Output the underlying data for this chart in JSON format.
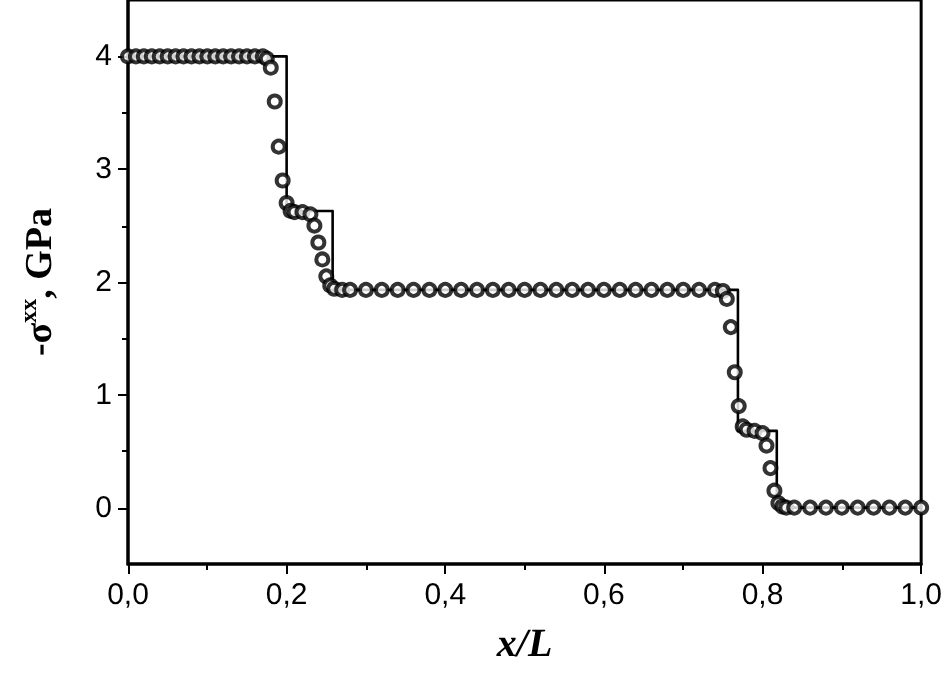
{
  "chart_data": {
    "type": "line",
    "xlabel": "x/L",
    "ylabel": "-σ$^{xx}$, GPa",
    "xlim": [
      0,
      1
    ],
    "xticks": [
      {
        "value": 0,
        "label": "0,0"
      },
      {
        "value": 0.2,
        "label": "0,2"
      },
      {
        "value": 0.4,
        "label": "0,4"
      },
      {
        "value": 0.6,
        "label": "0,6"
      },
      {
        "value": 0.8,
        "label": "0,8"
      },
      {
        "value": 1,
        "label": "1,0"
      }
    ],
    "ylim": [
      -0.5,
      4.5
    ],
    "yticks": [
      0,
      1,
      2,
      3,
      4
    ],
    "grid": false,
    "series": [
      {
        "color": "#000000",
        "marker": "none",
        "line_style": "solid",
        "x": [
          0,
          0.2,
          0.2,
          0.258,
          0.258,
          0.769,
          0.769,
          0.818,
          0.818,
          1
        ],
        "values": [
          4,
          4,
          2.63,
          2.63,
          1.93,
          1.93,
          0.68,
          0.68,
          0,
          0
        ]
      },
      {
        "type": "scatter",
        "color": "#000000",
        "marker": "circle",
        "x": [
          0,
          0.01,
          0.02,
          0.03,
          0.04,
          0.05,
          0.06,
          0.07,
          0.08,
          0.09,
          0.1,
          0.11,
          0.12,
          0.13,
          0.14,
          0.15,
          0.16,
          0.17,
          0.175,
          0.18,
          0.185,
          0.19,
          0.195,
          0.2,
          0.205,
          0.21,
          0.22,
          0.23,
          0.235,
          0.24,
          0.245,
          0.25,
          0.255,
          0.26,
          0.27,
          0.28,
          0.3,
          0.32,
          0.34,
          0.36,
          0.38,
          0.4,
          0.42,
          0.44,
          0.46,
          0.48,
          0.5,
          0.52,
          0.54,
          0.56,
          0.58,
          0.6,
          0.62,
          0.64,
          0.66,
          0.68,
          0.7,
          0.72,
          0.74,
          0.75,
          0.755,
          0.76,
          0.765,
          0.77,
          0.775,
          0.78,
          0.79,
          0.8,
          0.805,
          0.81,
          0.815,
          0.82,
          0.825,
          0.83,
          0.84,
          0.86,
          0.88,
          0.9,
          0.92,
          0.94,
          0.96,
          0.98,
          1
        ],
        "values": [
          4,
          4,
          4,
          4,
          4,
          4,
          4,
          4,
          4,
          4,
          4,
          4,
          4,
          4,
          4,
          4,
          4,
          4,
          3.98,
          3.9,
          3.6,
          3.2,
          2.9,
          2.7,
          2.63,
          2.62,
          2.62,
          2.6,
          2.5,
          2.35,
          2.2,
          2.05,
          1.97,
          1.94,
          1.93,
          1.93,
          1.93,
          1.93,
          1.93,
          1.93,
          1.93,
          1.93,
          1.93,
          1.93,
          1.93,
          1.93,
          1.93,
          1.93,
          1.93,
          1.93,
          1.93,
          1.93,
          1.93,
          1.93,
          1.93,
          1.93,
          1.93,
          1.93,
          1.93,
          1.92,
          1.85,
          1.6,
          1.2,
          0.9,
          0.72,
          0.69,
          0.68,
          0.66,
          0.55,
          0.35,
          0.15,
          0.04,
          0.01,
          0,
          0,
          0,
          0,
          0,
          0,
          0,
          0,
          0,
          0
        ]
      }
    ]
  }
}
